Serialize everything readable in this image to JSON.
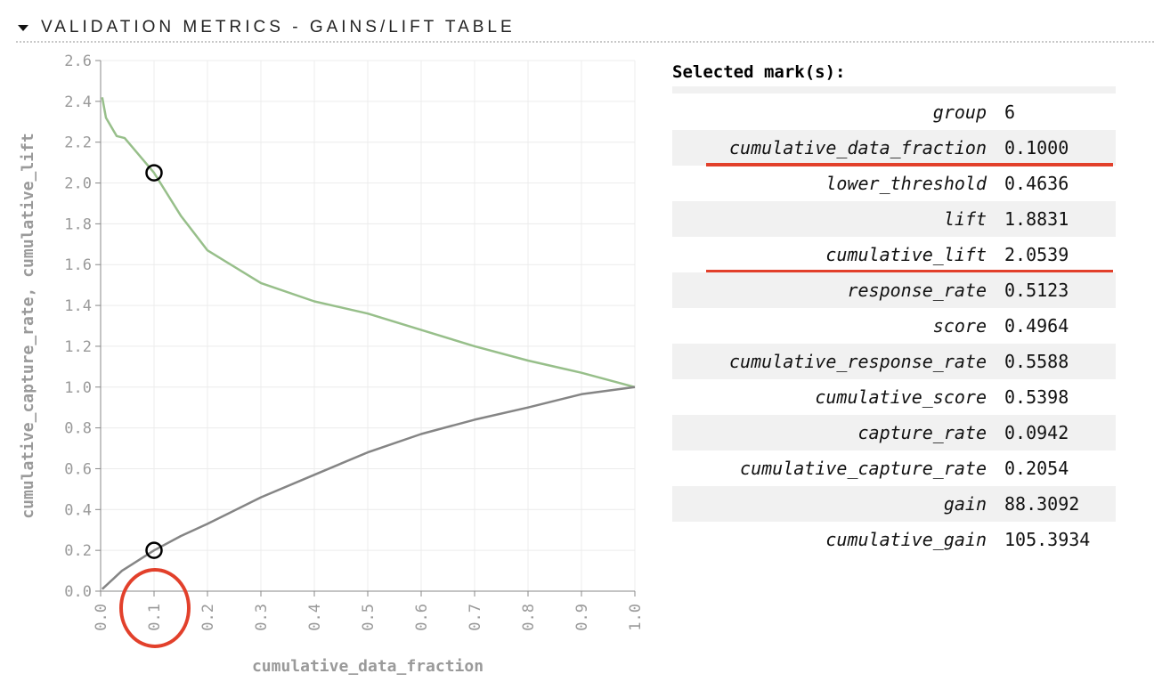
{
  "section": {
    "title": "VALIDATION METRICS - GAINS/LIFT TABLE"
  },
  "colors": {
    "lift_line": "#97bf8a",
    "capture_line": "#858585",
    "annotation_red": "#e2402b",
    "axis_text": "#9a9a9a",
    "grid": "#ececec"
  },
  "chart_data": {
    "type": "line",
    "xlabel": "cumulative_data_fraction",
    "ylabel": "cumulative_capture_rate, cumulative_lift",
    "xlim": [
      0,
      1
    ],
    "ylim": [
      0,
      2.6
    ],
    "x_ticks": [
      "0.0",
      "0.1",
      "0.2",
      "0.3",
      "0.4",
      "0.5",
      "0.6",
      "0.7",
      "0.8",
      "0.9",
      "1.0"
    ],
    "y_ticks": [
      "0.0",
      "0.2",
      "0.4",
      "0.6",
      "0.8",
      "1.0",
      "1.2",
      "1.4",
      "1.6",
      "1.8",
      "2.0",
      "2.2",
      "2.4",
      "2.6"
    ],
    "grid": true,
    "series": [
      {
        "key": "cumulative_lift",
        "color": "#97bf8a",
        "points": [
          [
            0.003,
            2.42
          ],
          [
            0.01,
            2.32
          ],
          [
            0.03,
            2.23
          ],
          [
            0.045,
            2.22
          ],
          [
            0.1,
            2.05
          ],
          [
            0.15,
            1.84
          ],
          [
            0.2,
            1.67
          ],
          [
            0.3,
            1.51
          ],
          [
            0.4,
            1.42
          ],
          [
            0.5,
            1.36
          ],
          [
            0.6,
            1.28
          ],
          [
            0.7,
            1.2
          ],
          [
            0.8,
            1.13
          ],
          [
            0.9,
            1.07
          ],
          [
            1.0,
            1.0
          ]
        ]
      },
      {
        "key": "cumulative_capture_rate",
        "color": "#858585",
        "points": [
          [
            0.003,
            0.01
          ],
          [
            0.04,
            0.1
          ],
          [
            0.1,
            0.2
          ],
          [
            0.15,
            0.27
          ],
          [
            0.2,
            0.33
          ],
          [
            0.3,
            0.46
          ],
          [
            0.4,
            0.57
          ],
          [
            0.5,
            0.68
          ],
          [
            0.6,
            0.77
          ],
          [
            0.7,
            0.84
          ],
          [
            0.8,
            0.9
          ],
          [
            0.9,
            0.965
          ],
          [
            1.0,
            1.0
          ]
        ]
      }
    ],
    "selected_points": [
      [
        0.1,
        2.05
      ],
      [
        0.1,
        0.2
      ]
    ],
    "highlighted_tick": "0.1"
  },
  "selected_marks": {
    "title": "Selected mark(s):",
    "rows": [
      {
        "key": "group",
        "value": "6"
      },
      {
        "key": "cumulative_data_fraction",
        "value": "0.1000"
      },
      {
        "key": "lower_threshold",
        "value": "0.4636"
      },
      {
        "key": "lift",
        "value": "1.8831"
      },
      {
        "key": "cumulative_lift",
        "value": "2.0539"
      },
      {
        "key": "response_rate",
        "value": "0.5123"
      },
      {
        "key": "score",
        "value": "0.4964"
      },
      {
        "key": "cumulative_response_rate",
        "value": "0.5588"
      },
      {
        "key": "cumulative_score",
        "value": "0.5398"
      },
      {
        "key": "capture_rate",
        "value": "0.0942"
      },
      {
        "key": "cumulative_capture_rate",
        "value": "0.2054"
      },
      {
        "key": "gain",
        "value": "88.3092"
      },
      {
        "key": "cumulative_gain",
        "value": "105.3934"
      }
    ],
    "underlined_keys": [
      "cumulative_data_fraction",
      "cumulative_lift"
    ]
  }
}
